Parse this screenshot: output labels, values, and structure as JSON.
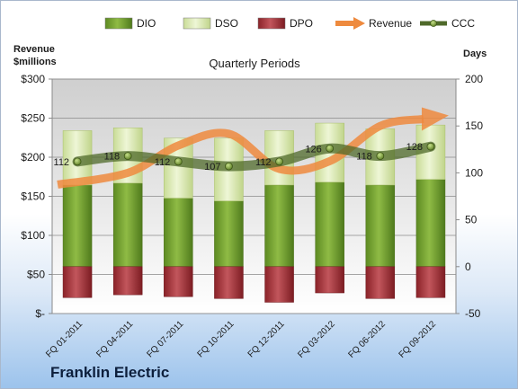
{
  "company": "Franklin Electric",
  "chart_data": {
    "type": "bar",
    "title": "Quarterly Periods",
    "ylabel_left": "Revenue\n$millions",
    "ylabel_right": "Days",
    "left_axis": {
      "range": [
        0,
        300
      ],
      "ticks": [
        0,
        50,
        100,
        150,
        200,
        250,
        300
      ],
      "tick_labels": [
        "$-",
        "$50",
        "$100",
        "$150",
        "$200",
        "$250",
        "$300"
      ]
    },
    "right_axis": {
      "range": [
        -50,
        200
      ],
      "ticks": [
        -50,
        0,
        50,
        100,
        150,
        200
      ],
      "tick_labels": [
        "-50",
        "0",
        "50",
        "100",
        "150",
        "200"
      ]
    },
    "categories": [
      "FQ 01-2011",
      "FQ 04-2011",
      "FQ 07-2011",
      "FQ 10-2011",
      "FQ 12-2011",
      "FQ 03-2012",
      "FQ 06-2012",
      "FQ 09-2012"
    ],
    "series": [
      {
        "name": "DIO",
        "axis": "right",
        "values": [
          87,
          89,
          73,
          70,
          87,
          90,
          87,
          93
        ]
      },
      {
        "name": "DSO",
        "axis": "right",
        "values": [
          58,
          59,
          64,
          67,
          58,
          63,
          60,
          58
        ]
      },
      {
        "name": "DPO",
        "axis": "right",
        "values": [
          -33,
          -30,
          -32,
          -34,
          -38,
          -28,
          -34,
          -33
        ]
      },
      {
        "name": "Revenue",
        "axis": "left",
        "values": [
          165,
          180,
          215,
          230,
          185,
          195,
          240,
          250
        ]
      },
      {
        "name": "CCC",
        "axis": "right",
        "values": [
          112,
          118,
          112,
          107,
          112,
          126,
          118,
          128
        ],
        "data_labels": [
          "112",
          "118",
          "112",
          "107",
          "112",
          "126",
          "118",
          "128"
        ]
      }
    ],
    "legend": {
      "placement": "top",
      "items": [
        {
          "label": "DIO",
          "color": "#6f9a2c"
        },
        {
          "label": "DSO",
          "color": "#dbe9b4"
        },
        {
          "label": "DPO",
          "color": "#a8343b"
        },
        {
          "label": "Revenue",
          "color": "#ee8a3e"
        },
        {
          "label": "CCC",
          "color": "#4f6a2a"
        }
      ]
    },
    "grid": true
  }
}
